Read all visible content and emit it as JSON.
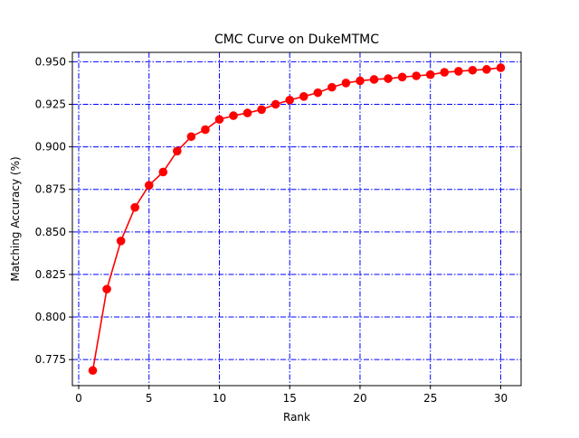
{
  "chart_data": {
    "type": "line",
    "title": "CMC Curve on DukeMTMC",
    "xlabel": "Rank",
    "ylabel": "Matching Accuracy (%)",
    "xlim": [
      -0.45,
      31.45
    ],
    "ylim": [
      0.7597,
      0.9555
    ],
    "xticks": [
      0,
      5,
      10,
      15,
      20,
      25,
      30
    ],
    "xtick_labels": [
      "0",
      "5",
      "10",
      "15",
      "20",
      "25",
      "30"
    ],
    "yticks": [
      0.775,
      0.8,
      0.825,
      0.85,
      0.875,
      0.9,
      0.925,
      0.95
    ],
    "ytick_labels": [
      "0.775",
      "0.800",
      "0.825",
      "0.850",
      "0.875",
      "0.900",
      "0.925",
      "0.950"
    ],
    "grid": true,
    "grid_color": "#0000ff",
    "grid_style": "dash-dot",
    "series": [
      {
        "color": "#ff0000",
        "marker": "circle",
        "x": [
          1,
          2,
          3,
          4,
          5,
          6,
          7,
          8,
          9,
          10,
          11,
          12,
          13,
          14,
          15,
          16,
          17,
          18,
          19,
          20,
          21,
          22,
          23,
          24,
          25,
          26,
          27,
          28,
          29,
          30
        ],
        "values": [
          0.7686,
          0.8164,
          0.8447,
          0.8644,
          0.8774,
          0.8852,
          0.8975,
          0.906,
          0.9101,
          0.9161,
          0.9183,
          0.9199,
          0.9219,
          0.925,
          0.9275,
          0.9296,
          0.9318,
          0.935,
          0.9375,
          0.9388,
          0.9396,
          0.9401,
          0.941,
          0.9417,
          0.9424,
          0.9438,
          0.9444,
          0.945,
          0.9455,
          0.9465
        ]
      }
    ]
  }
}
